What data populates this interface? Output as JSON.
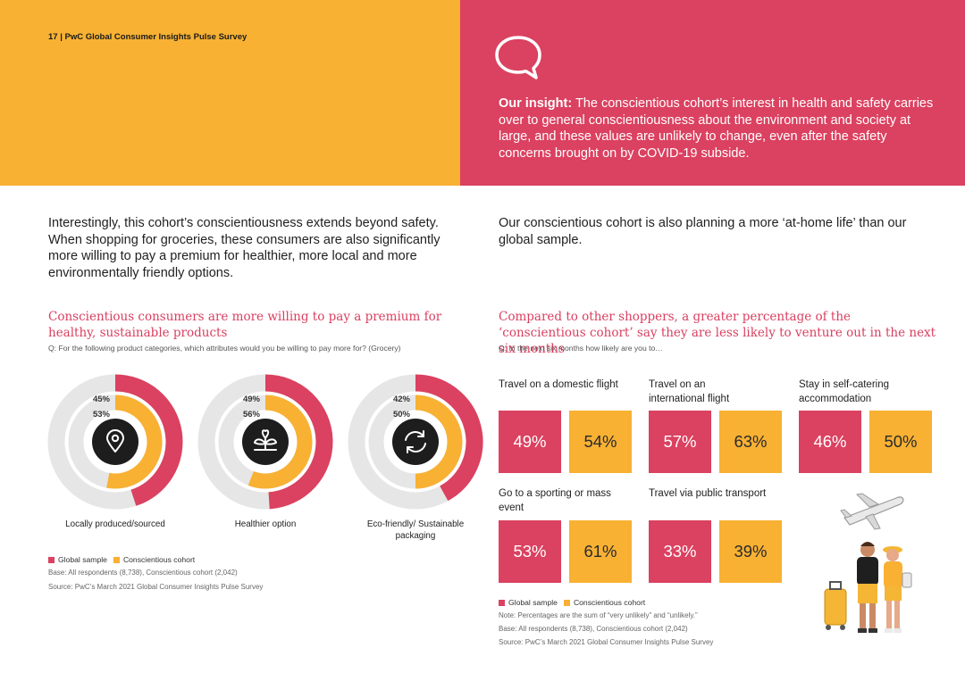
{
  "header": {
    "page_label": "17 | PwC Global Consumer Insights Pulse Survey"
  },
  "insight": {
    "lead": "Our insight:",
    "text": " The conscientious cohort’s interest in health and safety carries over to general conscientiousness about the environment and society at large, and these values are unlikely to change, even after the safety concerns brought on by COVID-19 subside."
  },
  "intro_left": "Interestingly, this cohort’s conscientiousness extends beyond safety. When shopping for groceries, these consumers are also significantly more willing to pay a premium for healthier, more local and more environmentally friendly options.",
  "intro_right": "Our conscientious cohort is also planning a more ‘at-home life’ than our global sample.",
  "colors": {
    "global": "#DB4160",
    "conscientious": "#F8B133",
    "track": "#E6E6E6",
    "center": "#1d1d1d"
  },
  "chart_left": {
    "title": "Conscientious consumers are more willing to pay a premium for healthy, sustainable products",
    "question": "Q: For the following product categories, which attributes would you be willing to pay more for? (Grocery)",
    "legend_global": "Global sample",
    "legend_cohort": "Conscientious cohort",
    "base": "Base: All respondents (8,738), Conscientious cohort (2,042)",
    "source": "Source: PwC’s March 2021 Global Consumer Insights Pulse Survey"
  },
  "chart_right": {
    "title": "Compared to other shoppers, a greater percentage of the ‘conscientious cohort’ say they are less likely to venture out in the next six months",
    "question": "Q: In the next six months how likely are you to…",
    "legend_global": "Global sample",
    "legend_cohort": "Conscientious cohort",
    "note": "Note: Percentages are the sum of “very unlikely” and “unlikely.”",
    "base": "Base: All respondents (8,738), Conscientious cohort (2,042)",
    "source": "Source: PwC’s March 2021 Global Consumer Insights Pulse Survey"
  },
  "chart_data": [
    {
      "type": "pie",
      "subtype": "radial-donut",
      "title": "Conscientious consumers are more willing to pay a premium for healthy, sustainable products",
      "categories": [
        "Locally produced/sourced",
        "Healthier option",
        "Eco-friendly/ Sustainable packaging"
      ],
      "icons": [
        "location-pin-icon",
        "sprout-icon",
        "recycle-icon"
      ],
      "series": [
        {
          "name": "Global sample",
          "values": [
            45,
            49,
            42
          ],
          "labels": [
            "45%",
            "49%",
            "42%"
          ]
        },
        {
          "name": "Conscientious cohort",
          "values": [
            53,
            56,
            50
          ],
          "labels": [
            "53%",
            "56%",
            "50%"
          ]
        }
      ],
      "ylim": [
        0,
        100
      ]
    },
    {
      "type": "bar",
      "subtype": "value-tiles",
      "title": "Compared to other shoppers, a greater percentage of the ‘conscientious cohort’ say they are less likely to venture out in the next six months",
      "categories": [
        "Travel on a domestic flight",
        "Travel on an international flight",
        "Stay in self-catering accommodation",
        "Go to a sporting or mass event",
        "Travel via public transport"
      ],
      "series": [
        {
          "name": "Global sample",
          "values": [
            49,
            57,
            46,
            53,
            33
          ],
          "labels": [
            "49%",
            "57%",
            "46%",
            "53%",
            "33%"
          ]
        },
        {
          "name": "Conscientious cohort",
          "values": [
            54,
            63,
            50,
            61,
            39
          ],
          "labels": [
            "54%",
            "63%",
            "50%",
            "61%",
            "39%"
          ]
        }
      ]
    }
  ]
}
